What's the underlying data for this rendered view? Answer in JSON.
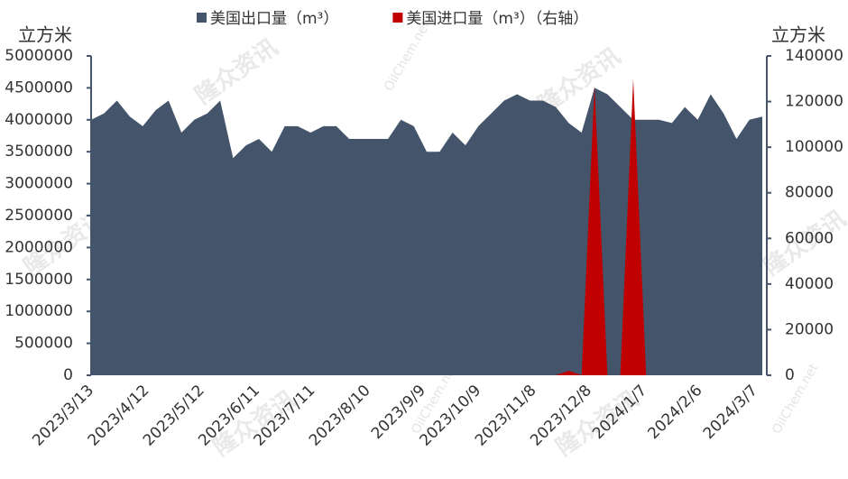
{
  "chart_data": {
    "type": "area",
    "watermarks": [
      "隆众资讯",
      "OilChem.net"
    ],
    "y_label": "立方米",
    "y2_label": "立方米",
    "x": [
      "2023/3/13",
      "2023/3/20",
      "2023/3/27",
      "2023/4/3",
      "2023/4/10",
      "2023/4/17",
      "2023/4/24",
      "2023/5/1",
      "2023/5/8",
      "2023/5/15",
      "2023/5/22",
      "2023/5/29",
      "2023/6/5",
      "2023/6/12",
      "2023/6/19",
      "2023/6/26",
      "2023/7/3",
      "2023/7/10",
      "2023/7/17",
      "2023/7/24",
      "2023/7/31",
      "2023/8/7",
      "2023/8/14",
      "2023/8/21",
      "2023/8/28",
      "2023/9/4",
      "2023/9/11",
      "2023/9/18",
      "2023/9/25",
      "2023/10/2",
      "2023/10/9",
      "2023/10/16",
      "2023/10/23",
      "2023/10/30",
      "2023/11/6",
      "2023/11/13",
      "2023/11/20",
      "2023/11/27",
      "2023/12/4",
      "2023/12/11",
      "2023/12/18",
      "2023/12/25",
      "2024/1/1",
      "2024/1/8",
      "2024/1/15",
      "2024/1/22",
      "2024/1/29",
      "2024/2/5",
      "2024/2/12",
      "2024/2/19",
      "2024/2/26",
      "2024/3/4",
      "2024/3/11"
    ],
    "xticks": [
      "2023/3/13",
      "2023/4/12",
      "2023/5/12",
      "2023/6/11",
      "2023/7/11",
      "2023/8/10",
      "2023/9/9",
      "2023/10/9",
      "2023/11/8",
      "2023/12/8",
      "2024/1/7",
      "2024/2/6",
      "2024/3/7"
    ],
    "series": [
      {
        "name": "美国出口量（m³）",
        "color": "#44546a",
        "axis": "y",
        "values": [
          4000000,
          4100000,
          4300000,
          4050000,
          3900000,
          4150000,
          4300000,
          3800000,
          4000000,
          4100000,
          4300000,
          3400000,
          3600000,
          3700000,
          3500000,
          3900000,
          3900000,
          3800000,
          3900000,
          3900000,
          3700000,
          3700000,
          3700000,
          3700000,
          4000000,
          3900000,
          3500000,
          3500000,
          3800000,
          3600000,
          3900000,
          4100000,
          4300000,
          4400000,
          4300000,
          4300000,
          4200000,
          3950000,
          3800000,
          4500000,
          4400000,
          4200000,
          4000000,
          4000000,
          4000000,
          3950000,
          4200000,
          4000000,
          4400000,
          4100000,
          3700000,
          4000000,
          4050000
        ]
      },
      {
        "name": "美国进口量（m³）（右轴）",
        "color": "#c00000",
        "axis": "y2",
        "values": [
          0,
          0,
          0,
          0,
          0,
          0,
          0,
          0,
          0,
          0,
          0,
          0,
          0,
          0,
          0,
          0,
          0,
          0,
          0,
          0,
          0,
          0,
          0,
          0,
          0,
          0,
          0,
          0,
          0,
          0,
          0,
          0,
          0,
          0,
          0,
          0,
          0,
          2000,
          0,
          127000,
          0,
          0,
          130000,
          0,
          0,
          0,
          0,
          0,
          0,
          0,
          0,
          0,
          0
        ]
      }
    ],
    "ylim": [
      0,
      5000000
    ],
    "yticks": [
      0,
      500000,
      1000000,
      1500000,
      2000000,
      2500000,
      3000000,
      3500000,
      4000000,
      4500000,
      5000000
    ],
    "y2lim": [
      0,
      140000
    ],
    "y2ticks": [
      0,
      20000,
      40000,
      60000,
      80000,
      100000,
      120000,
      140000
    ],
    "legend": "top"
  }
}
